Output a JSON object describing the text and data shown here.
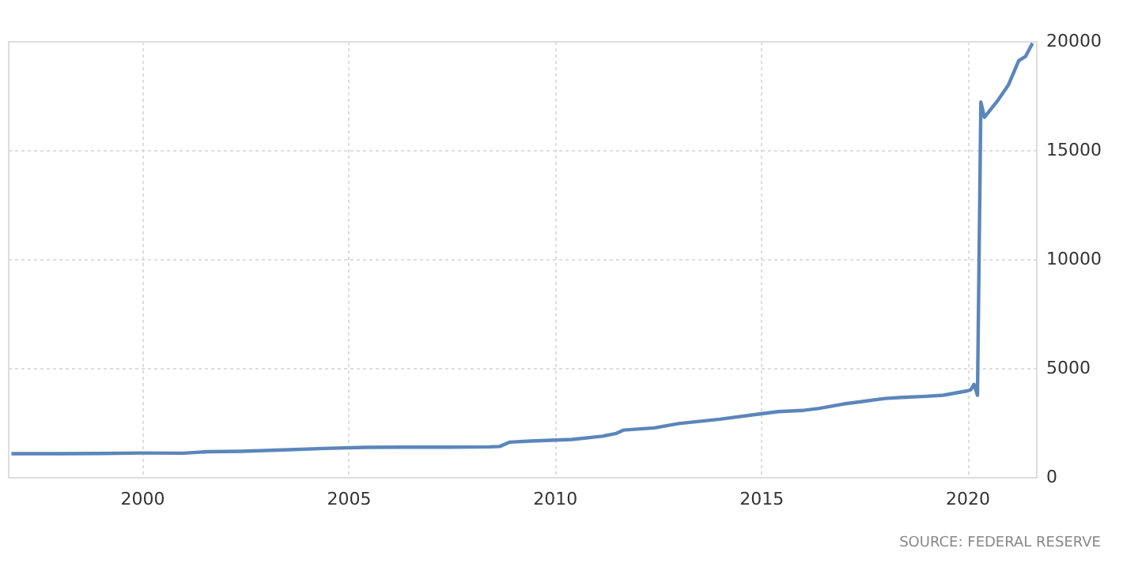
{
  "chart_data": {
    "type": "line",
    "x": [
      "1996-11",
      "1998-01",
      "1999-01",
      "2000-01",
      "2001-01",
      "2001-08",
      "2002-06",
      "2003-06",
      "2004-06",
      "2005-06",
      "2006-06",
      "2007-06",
      "2008-06",
      "2008-09",
      "2008-12",
      "2009-06",
      "2010-06",
      "2011-03",
      "2011-07",
      "2011-09",
      "2012-06",
      "2013-01",
      "2014-01",
      "2015-01",
      "2015-06",
      "2016-01",
      "2016-06",
      "2017-01",
      "2017-06",
      "2018-01",
      "2018-06",
      "2019-01",
      "2019-06",
      "2020-01",
      "2020-02",
      "2020-03",
      "2020-04",
      "2020-05",
      "2020-06",
      "2020-10",
      "2021-01",
      "2021-04",
      "2021-06",
      "2021-08"
    ],
    "series": [
      {
        "color": "#5b86bb",
        "values": [
          1070,
          1070,
          1080,
          1100,
          1090,
          1160,
          1180,
          1240,
          1310,
          1360,
          1370,
          1370,
          1380,
          1400,
          1600,
          1650,
          1720,
          1870,
          2000,
          2150,
          2250,
          2450,
          2650,
          2900,
          3000,
          3050,
          3150,
          3350,
          3450,
          3600,
          3650,
          3700,
          3750,
          3950,
          4000,
          4250,
          3750,
          17200,
          16500,
          17300,
          18000,
          19100,
          19300,
          19900
        ]
      }
    ],
    "xlim": [
      "1996-10",
      "2021-09"
    ],
    "xticks": [
      "2000",
      "2005",
      "2010",
      "2015",
      "2020"
    ],
    "ylim": [
      0,
      20000
    ],
    "yticks": [
      0,
      5000,
      10000,
      15000,
      20000
    ],
    "grid": true,
    "legend": false,
    "marker": "none",
    "line_style": "solid",
    "annotations": [
      "SOURCE: FEDERAL RESERVE"
    ]
  }
}
